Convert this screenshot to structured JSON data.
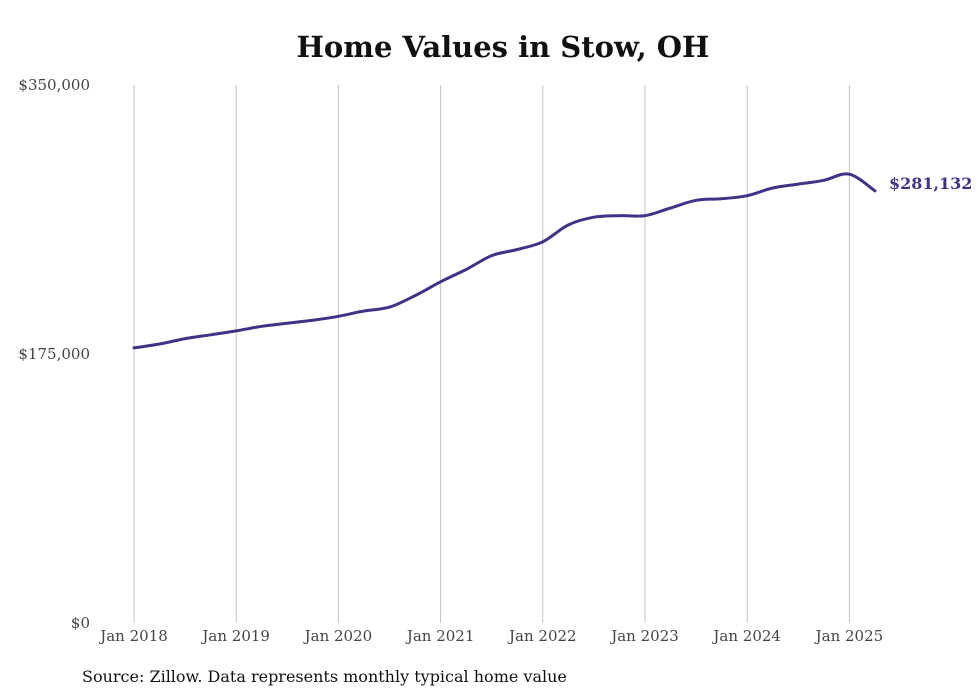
{
  "chart_data": {
    "type": "line",
    "title": "Home Values in Stow, OH",
    "source": "Source: Zillow. Data represents monthly typical home value",
    "ylim": [
      0,
      350000
    ],
    "yticks": [
      0,
      175000,
      350000
    ],
    "ytick_labels": [
      "$0",
      "$175,000",
      "$350,000"
    ],
    "xlim": [
      "2018-01",
      "2025-04"
    ],
    "xticks": [
      "2018-01",
      "2019-01",
      "2020-01",
      "2021-01",
      "2022-01",
      "2023-01",
      "2024-01",
      "2025-01"
    ],
    "xtick_labels": [
      "Jan 2018",
      "Jan 2019",
      "Jan 2020",
      "Jan 2021",
      "Jan 2022",
      "Jan 2023",
      "Jan 2024",
      "Jan 2025"
    ],
    "grid": "vertical",
    "line_color": "#3d3488",
    "end_label": "$281,132",
    "series": [
      {
        "x": [
          "2018-01",
          "2018-04",
          "2018-07",
          "2018-10",
          "2019-01",
          "2019-04",
          "2019-07",
          "2019-10",
          "2020-01",
          "2020-04",
          "2020-07",
          "2020-10",
          "2021-01",
          "2021-04",
          "2021-07",
          "2021-10",
          "2022-01",
          "2022-04",
          "2022-07",
          "2022-10",
          "2023-01",
          "2023-04",
          "2023-07",
          "2023-10",
          "2024-01",
          "2024-04",
          "2024-07",
          "2024-10",
          "2025-01",
          "2025-04"
        ],
        "values": [
          179000,
          181500,
          185000,
          187500,
          190000,
          193000,
          195000,
          197000,
          199500,
          203000,
          205500,
          213000,
          222000,
          230000,
          239000,
          243000,
          248000,
          259000,
          264000,
          265000,
          265000,
          270000,
          275000,
          276000,
          278000,
          283000,
          285500,
          288000,
          292000,
          281132
        ]
      }
    ]
  }
}
